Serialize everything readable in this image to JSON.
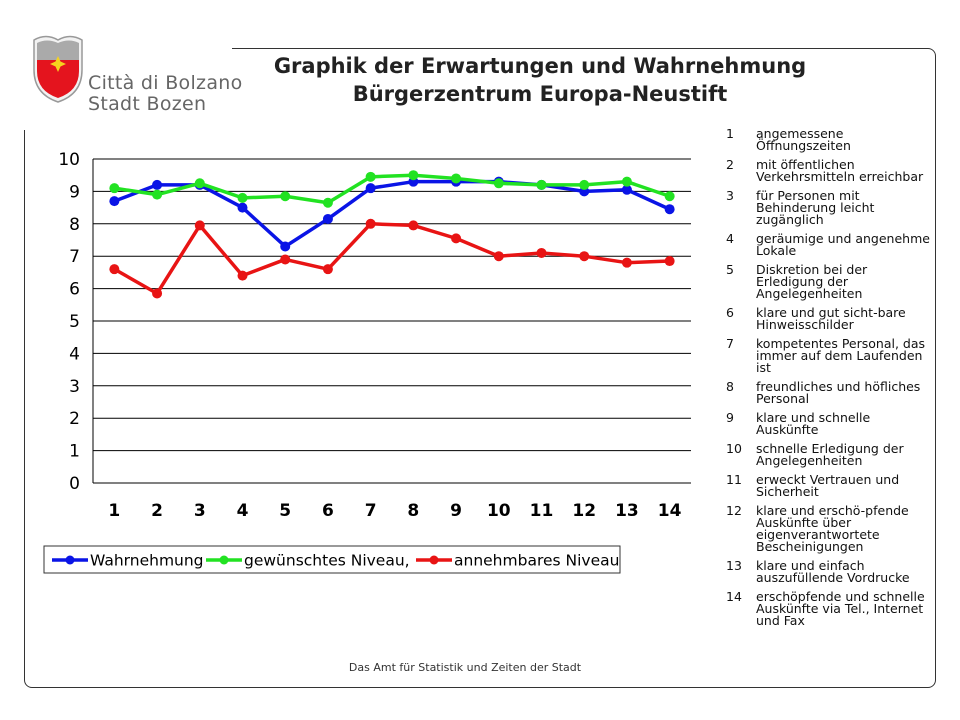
{
  "header": {
    "title_line1": "Graphik der Erwartungen und Wahrnehmung",
    "title_line2": "Bürgerzentrum Europa-Neustift",
    "logo_line1": "Città di Bolzano",
    "logo_line2": "Stadt Bozen",
    "logo_icon": "bolzano-coat-of-arms"
  },
  "footer": {
    "text": "Das Amt für Statistik und Zeiten der Stadt"
  },
  "colors": {
    "wahrnehmung": "#0a14e6",
    "gewuenscht": "#22e222",
    "annehmbar": "#e81414",
    "shield_red": "#e4141e"
  },
  "items": [
    {
      "num": "1",
      "label": "angemessene Öffnungszeiten"
    },
    {
      "num": "2",
      "label": "mit öffentlichen Verkehrsmitteln erreichbar"
    },
    {
      "num": "3",
      "label": "für Personen mit Behinderung leicht zugänglich"
    },
    {
      "num": "4",
      "label": "geräumige und angenehme Lokale"
    },
    {
      "num": "5",
      "label": "Diskretion bei der Erledigung der Angelegenheiten"
    },
    {
      "num": "6",
      "label": "klare und gut sicht-bare Hinweisschilder"
    },
    {
      "num": "7",
      "label": "kompetentes Personal, das immer auf dem Laufenden ist"
    },
    {
      "num": "8",
      "label": "freundliches und höfliches Personal"
    },
    {
      "num": "9",
      "label": "klare und schnelle Auskünfte"
    },
    {
      "num": "10",
      "label": "schnelle Erledigung der Angelegenheiten"
    },
    {
      "num": "11",
      "label": "erweckt Vertrauen und Sicherheit"
    },
    {
      "num": "12",
      "label": "klare und erschö-pfende Auskünfte über eigenverantwortete Bescheinigungen"
    },
    {
      "num": "13",
      "label": "klare und einfach auszufüllende Vordrucke"
    },
    {
      "num": "14",
      "label": "erschöpfende und schnelle Auskünfte via Tel., Internet und Fax"
    }
  ],
  "chart_data": {
    "type": "line",
    "title": "",
    "xlabel": "",
    "ylabel": "",
    "ylim": [
      0,
      10
    ],
    "yticks": [
      "0",
      "1",
      "2",
      "3",
      "4",
      "5",
      "6",
      "7",
      "8",
      "9",
      "10"
    ],
    "categories": [
      "1",
      "2",
      "3",
      "4",
      "5",
      "6",
      "7",
      "8",
      "9",
      "10",
      "11",
      "12",
      "13",
      "14"
    ],
    "grid": "horizontal",
    "legend_position": "bottom",
    "series": [
      {
        "name": "Wahrnehmung",
        "color": "#0a14e6",
        "values": [
          8.7,
          9.2,
          9.2,
          8.5,
          7.3,
          8.15,
          9.1,
          9.3,
          9.3,
          9.3,
          9.2,
          9.0,
          9.05,
          8.45
        ]
      },
      {
        "name": "gewünschtes Niveau,",
        "color": "#22e222",
        "values": [
          9.1,
          8.9,
          9.25,
          8.8,
          8.85,
          8.65,
          9.45,
          9.5,
          9.4,
          9.25,
          9.2,
          9.2,
          9.3,
          8.85
        ]
      },
      {
        "name": "annehmbares Niveau",
        "color": "#e81414",
        "values": [
          6.6,
          5.85,
          7.95,
          6.4,
          6.9,
          6.6,
          8.0,
          7.95,
          7.55,
          7.0,
          7.1,
          7.0,
          6.8,
          6.85
        ]
      }
    ]
  }
}
